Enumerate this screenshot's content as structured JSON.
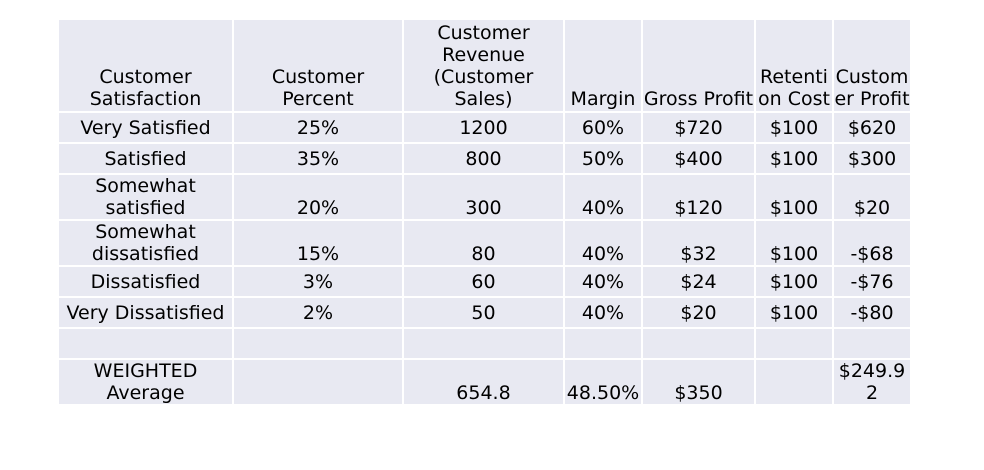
{
  "table": {
    "headers": [
      "Customer\nSatisfaction",
      "Customer\nPercent",
      "Customer\nRevenue\n(Customer\nSales)",
      "Margin",
      "Gross Profit",
      "Retenti\non Cost",
      "Custom\ner Profit"
    ],
    "rows": [
      [
        "Very Satisfied",
        "25%",
        "1200",
        "60%",
        "$720",
        "$100",
        "$620"
      ],
      [
        "Satisfied",
        "35%",
        "800",
        "50%",
        "$400",
        "$100",
        "$300"
      ],
      [
        "Somewhat\nsatisfied",
        "20%",
        "300",
        "40%",
        "$120",
        "$100",
        "$20"
      ],
      [
        "Somewhat\ndissatisfied",
        "15%",
        "80",
        "40%",
        "$32",
        "$100",
        "-$68"
      ],
      [
        "Dissatisfied",
        "3%",
        "60",
        "40%",
        "$24",
        "$100",
        "-$76"
      ],
      [
        "Very Dissatisfied",
        "2%",
        "50",
        "40%",
        "$20",
        "$100",
        "-$80"
      ],
      [
        "",
        "",
        "",
        "",
        "",
        "",
        ""
      ],
      [
        "WEIGHTED\nAverage",
        "",
        "654.8",
        "48.50%",
        "$350",
        "",
        "$249.9\n2"
      ]
    ]
  }
}
